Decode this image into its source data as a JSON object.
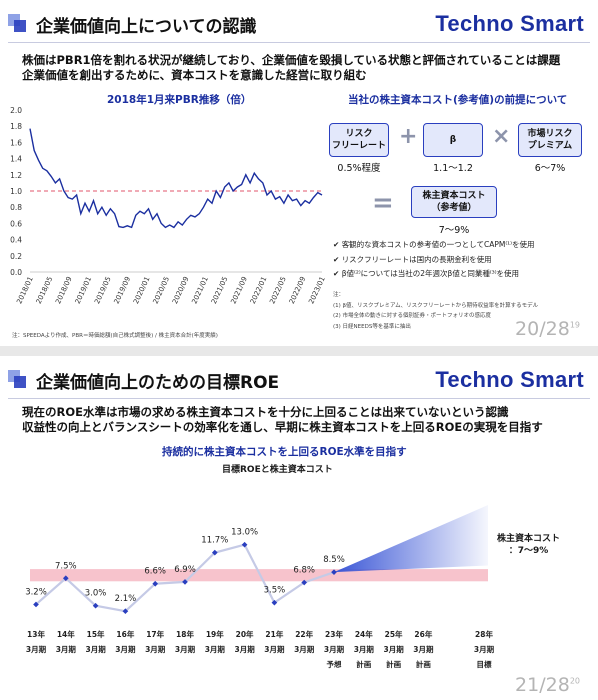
{
  "slide1": {
    "title": "企業価値向上についての認識",
    "brand": "Techno Smart",
    "lead_line1": "株価はPBR1倍を割れる状況が継続しており、企業価値を毀損している状態と評価されていることは課題",
    "lead_line2": "企業価値を創出するために、資本コストを意識した経営に取り組む",
    "chart_title": "2018年1月来PBR推移（倍）",
    "cost_title": "当社の株主資本コスト(参考値)の前提について",
    "boxes": [
      {
        "line1": "リスク",
        "line2": "フリーレート",
        "value": "0.5%程度"
      },
      {
        "line1": "β",
        "line2": "",
        "value": "1.1～1.2"
      },
      {
        "line1": "市場リスク",
        "line2": "プレミアム",
        "value": "6～7%"
      }
    ],
    "op_plus": "+",
    "op_times": "×",
    "op_equals": "=",
    "result_line1": "株主資本コスト",
    "result_line2": "（参考値）",
    "result_value": "7～9%",
    "bullets": [
      "客観的な資本コストの参考値の一つとしてCAPM⁽¹⁾を使用",
      "リスクフリーレートは国内の長期金利を使用",
      "β値⁽²⁾については当社の2年週次β値と同業種⁽³⁾を使用"
    ],
    "check_glyph": "✔",
    "notes_title": "注：",
    "notes": [
      "(1) β値、リスクプレミアム、リスクフリーレートから期待収益率を計算するモデル",
      "(2) 市場全体の動きに対する個別証券・ポートフォリオの感応度",
      "(3) 日経NEEDS等を基準に抽出"
    ],
    "footnote": "注：SPEEDAより作成、PBR＝時価総額(自己株式調整後) / 株主資本合計(年度実績)",
    "page": "20/28",
    "page_sup": "19"
  },
  "slide2": {
    "title": "企業価値向上のための目標ROE",
    "brand": "Techno Smart",
    "lead_line1": "現在のROE水準は市場の求める株主資本コストを十分に上回ることは出来ていないという認識",
    "lead_line2": "収益性の向上とバランスシートの効率化を通し、早期に株主資本コストを上回るROEの実現を目指す",
    "banner": "持続的に株主資本コストを上回るROE水準を目指す",
    "chart_title": "目標ROEと株主資本コスト",
    "cost_label_line1": "株主資本コスト",
    "cost_label_line2": "：7～9%",
    "page": "21/28",
    "page_sup": "20"
  },
  "chart_data": [
    {
      "type": "line",
      "title": "2018年1月来PBR推移（倍）",
      "ylim": [
        0,
        2.0
      ],
      "yticks": [
        "0.0",
        "0.2",
        "0.4",
        "0.6",
        "0.8",
        "1.0",
        "1.2",
        "1.4",
        "1.6",
        "1.8",
        "2.0"
      ],
      "xticks": [
        "2018/01",
        "2018/05",
        "2018/09",
        "2019/01",
        "2019/05",
        "2019/09",
        "2020/01",
        "2020/05",
        "2020/09",
        "2021/01",
        "2021/05",
        "2021/09",
        "2022/01",
        "2022/05",
        "2022/09",
        "2023/01"
      ],
      "reference_line": 1.0,
      "series": [
        {
          "values": [
            1.77,
            1.5,
            1.38,
            1.28,
            1.25,
            1.18,
            1.1,
            1.15,
            1.0,
            0.92,
            0.9,
            0.95,
            0.72,
            0.85,
            0.75,
            0.88,
            0.72,
            0.8,
            0.7,
            0.78,
            0.72,
            0.56,
            0.55,
            0.57,
            0.55,
            0.7,
            0.75,
            0.72,
            0.78,
            0.65,
            0.72,
            0.6,
            0.55,
            0.58,
            0.55,
            0.62,
            0.58,
            0.65,
            0.7,
            0.68,
            0.72,
            0.8,
            0.9,
            0.85,
            1.0,
            0.92,
            1.05,
            1.1,
            1.0,
            1.05,
            1.08,
            1.2,
            1.1,
            1.22,
            1.15,
            1.1,
            0.95,
            1.0,
            0.9,
            0.93,
            0.85,
            0.95,
            0.88,
            0.9,
            0.82,
            0.88,
            0.85,
            0.92,
            0.98,
            0.95
          ]
        }
      ]
    },
    {
      "type": "line",
      "title": "目標ROEと株主資本コスト",
      "categories": [
        "13年3月期",
        "14年3月期",
        "15年3月期",
        "16年3月期",
        "17年3月期",
        "18年3月期",
        "19年3月期",
        "20年3月期",
        "21年3月期",
        "22年3月期",
        "23年3月期予想",
        "24年3月期計画",
        "25年3月期計画",
        "26年3月期計画",
        "28年3月期目標"
      ],
      "category_lines": [
        [
          "13年",
          "3月期",
          ""
        ],
        [
          "14年",
          "3月期",
          ""
        ],
        [
          "15年",
          "3月期",
          ""
        ],
        [
          "16年",
          "3月期",
          ""
        ],
        [
          "17年",
          "3月期",
          ""
        ],
        [
          "18年",
          "3月期",
          ""
        ],
        [
          "19年",
          "3月期",
          ""
        ],
        [
          "20年",
          "3月期",
          ""
        ],
        [
          "21年",
          "3月期",
          ""
        ],
        [
          "22年",
          "3月期",
          ""
        ],
        [
          "23年",
          "3月期",
          "予想"
        ],
        [
          "24年",
          "3月期",
          "計画"
        ],
        [
          "25年",
          "3月期",
          "計画"
        ],
        [
          "26年",
          "3月期",
          "計画"
        ],
        [
          "28年",
          "3月期",
          "目標"
        ]
      ],
      "values": [
        3.2,
        7.5,
        3.0,
        2.1,
        6.6,
        6.9,
        11.7,
        13.0,
        3.5,
        6.8,
        8.5
      ],
      "labels": [
        "3.2%",
        "7.5%",
        "3.0%",
        "2.1%",
        "6.6%",
        "6.9%",
        "11.7%",
        "13.0%",
        "3.5%",
        "6.8%",
        "8.5%"
      ],
      "cost_band": [
        7,
        9
      ],
      "colors": {
        "line": "#c5cae6",
        "marker": "#2a3fbf",
        "band": "#f7c3cc",
        "fan": "#3a56d6"
      }
    }
  ]
}
